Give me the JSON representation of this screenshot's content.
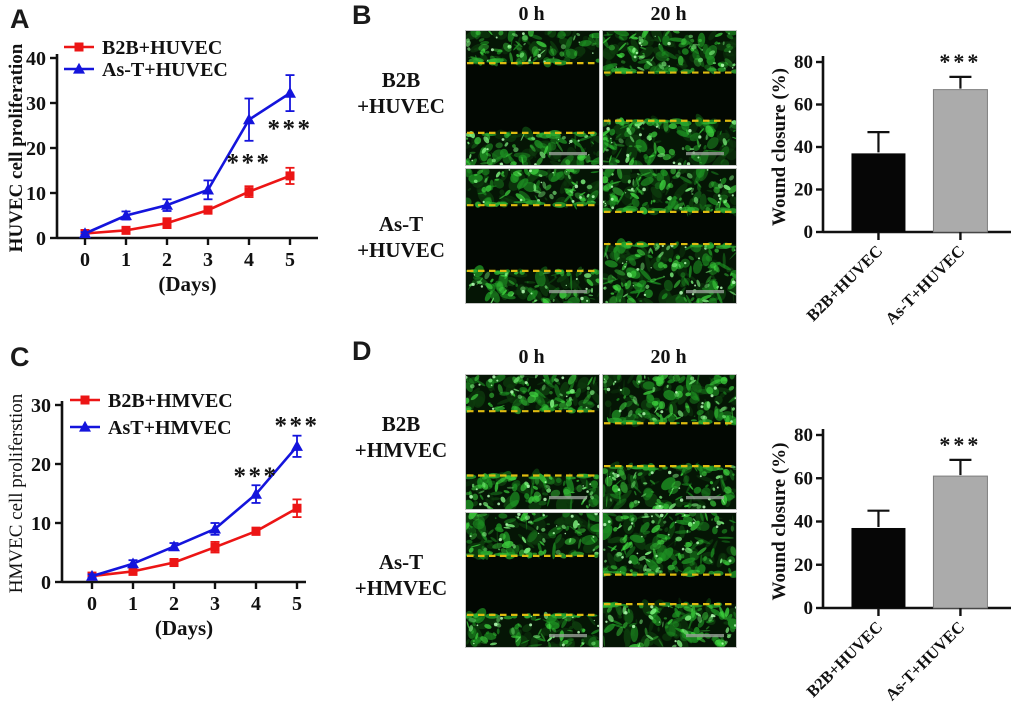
{
  "panels": {
    "A": {
      "letter": "A"
    },
    "B": {
      "letter": "B",
      "col_headers": [
        "0 h",
        "20 h"
      ],
      "rows": [
        {
          "line1": "B2B",
          "line2": "+HUVEC"
        },
        {
          "line1": "As-T",
          "line2": "+HUVEC"
        }
      ]
    },
    "C": {
      "letter": "C"
    },
    "D": {
      "letter": "D",
      "col_headers": [
        "0 h",
        "20 h"
      ],
      "rows": [
        {
          "line1": "B2B",
          "line2": "+HMVEC"
        },
        {
          "line1": "As-T",
          "line2": "+HMVEC"
        }
      ]
    }
  },
  "colors": {
    "series_red": "#ec1515",
    "series_blue": "#1414dc",
    "bar_black": "#060606",
    "bar_gray": "#ababab",
    "axis": "#111111",
    "wound_dash_yellow": "#debb10",
    "cell_green": "#3fd53f"
  },
  "chart_data": [
    {
      "id": "A_line",
      "type": "line",
      "ylabel": "HUVEC cell proliferation",
      "ylabel_weight": "bold",
      "xlabel": "(Days)",
      "ylim": [
        0,
        40
      ],
      "yticks": [
        0,
        10,
        20,
        30,
        40
      ],
      "xticks": [
        0,
        1,
        2,
        3,
        4,
        5
      ],
      "grid": false,
      "legend_position": "top-left",
      "series": [
        {
          "name": "B2B+HUVEC",
          "color": "#ec1515",
          "marker": "square",
          "values": [
            1,
            1.7,
            3.3,
            6.2,
            10.3,
            13.8
          ],
          "errors": [
            0.3,
            0.5,
            1.1,
            0.8,
            1.2,
            1.8
          ]
        },
        {
          "name": "As-T+HUVEC",
          "color": "#1414dc",
          "marker": "triangle",
          "values": [
            1,
            5,
            7.3,
            10.7,
            26.3,
            32.2
          ],
          "errors": [
            0.3,
            0.9,
            1.3,
            2.1,
            4.7,
            4.0
          ]
        }
      ],
      "annotations": [
        {
          "text": "***",
          "x": 4,
          "y": 17.5
        },
        {
          "text": "***",
          "x": 5,
          "y": 25
        }
      ]
    },
    {
      "id": "B_bar",
      "type": "bar",
      "ylabel": "Wound closure (%)",
      "categories": [
        "B2B+HUVEC",
        "As-T+HUVEC"
      ],
      "values": [
        37,
        67
      ],
      "errors": [
        10,
        6
      ],
      "bar_colors": [
        "#060606",
        "#ababab"
      ],
      "ylim": [
        0,
        80
      ],
      "yticks": [
        0,
        20,
        40,
        60,
        80
      ],
      "grid": false,
      "annotations": [
        {
          "text": "***",
          "category_index": 1
        }
      ]
    },
    {
      "id": "C_line",
      "type": "line",
      "ylabel": "HMVEC cell proliferstion",
      "ylabel_weight": "normal",
      "xlabel": "(Days)",
      "ylim": [
        0,
        30
      ],
      "yticks": [
        0,
        10,
        20,
        30
      ],
      "xticks": [
        0,
        1,
        2,
        3,
        4,
        5
      ],
      "grid": false,
      "legend_position": "top-left",
      "series": [
        {
          "name": "B2B+HMVEC",
          "color": "#ec1515",
          "marker": "square",
          "values": [
            1,
            1.8,
            3.3,
            5.9,
            8.6,
            12.5
          ],
          "errors": [
            0.3,
            0.5,
            0.6,
            0.9,
            0.6,
            1.5
          ]
        },
        {
          "name": "AsT+HMVEC",
          "color": "#1414dc",
          "marker": "triangle",
          "values": [
            1,
            3.1,
            6.0,
            9.0,
            14.9,
            23.0
          ],
          "errors": [
            0.3,
            0.6,
            0.6,
            1.0,
            1.5,
            1.8
          ]
        }
      ],
      "annotations": [
        {
          "text": "***",
          "x": 4,
          "y": 18.5
        },
        {
          "text": "***",
          "x": 5,
          "y": 27
        }
      ]
    },
    {
      "id": "D_bar",
      "type": "bar",
      "ylabel": "Wound closure (%)",
      "categories": [
        "B2B+HUVEC",
        "As-T+HUVEC"
      ],
      "values": [
        37,
        61
      ],
      "errors": [
        8,
        7.5
      ],
      "bar_colors": [
        "#060606",
        "#ababab"
      ],
      "ylim": [
        0,
        80
      ],
      "yticks": [
        0,
        20,
        40,
        60,
        80
      ],
      "grid": false,
      "annotations": [
        {
          "text": "***",
          "category_index": 1
        }
      ]
    }
  ],
  "micrographs": {
    "B": {
      "images": [
        [
          {
            "time": "0 h",
            "gap_top_pct": 24,
            "gap_bottom_pct": 76
          },
          {
            "time": "20 h",
            "gap_top_pct": 31,
            "gap_bottom_pct": 67
          }
        ],
        [
          {
            "time": "0 h",
            "gap_top_pct": 27,
            "gap_bottom_pct": 76
          },
          {
            "time": "20 h",
            "gap_top_pct": 32,
            "gap_bottom_pct": 56
          }
        ]
      ]
    },
    "D": {
      "images": [
        [
          {
            "time": "0 h",
            "gap_top_pct": 27,
            "gap_bottom_pct": 75
          },
          {
            "time": "20 h",
            "gap_top_pct": 36,
            "gap_bottom_pct": 68
          }
        ],
        [
          {
            "time": "0 h",
            "gap_top_pct": 32,
            "gap_bottom_pct": 76
          },
          {
            "time": "20 h",
            "gap_top_pct": 46,
            "gap_bottom_pct": 68
          }
        ]
      ]
    }
  }
}
